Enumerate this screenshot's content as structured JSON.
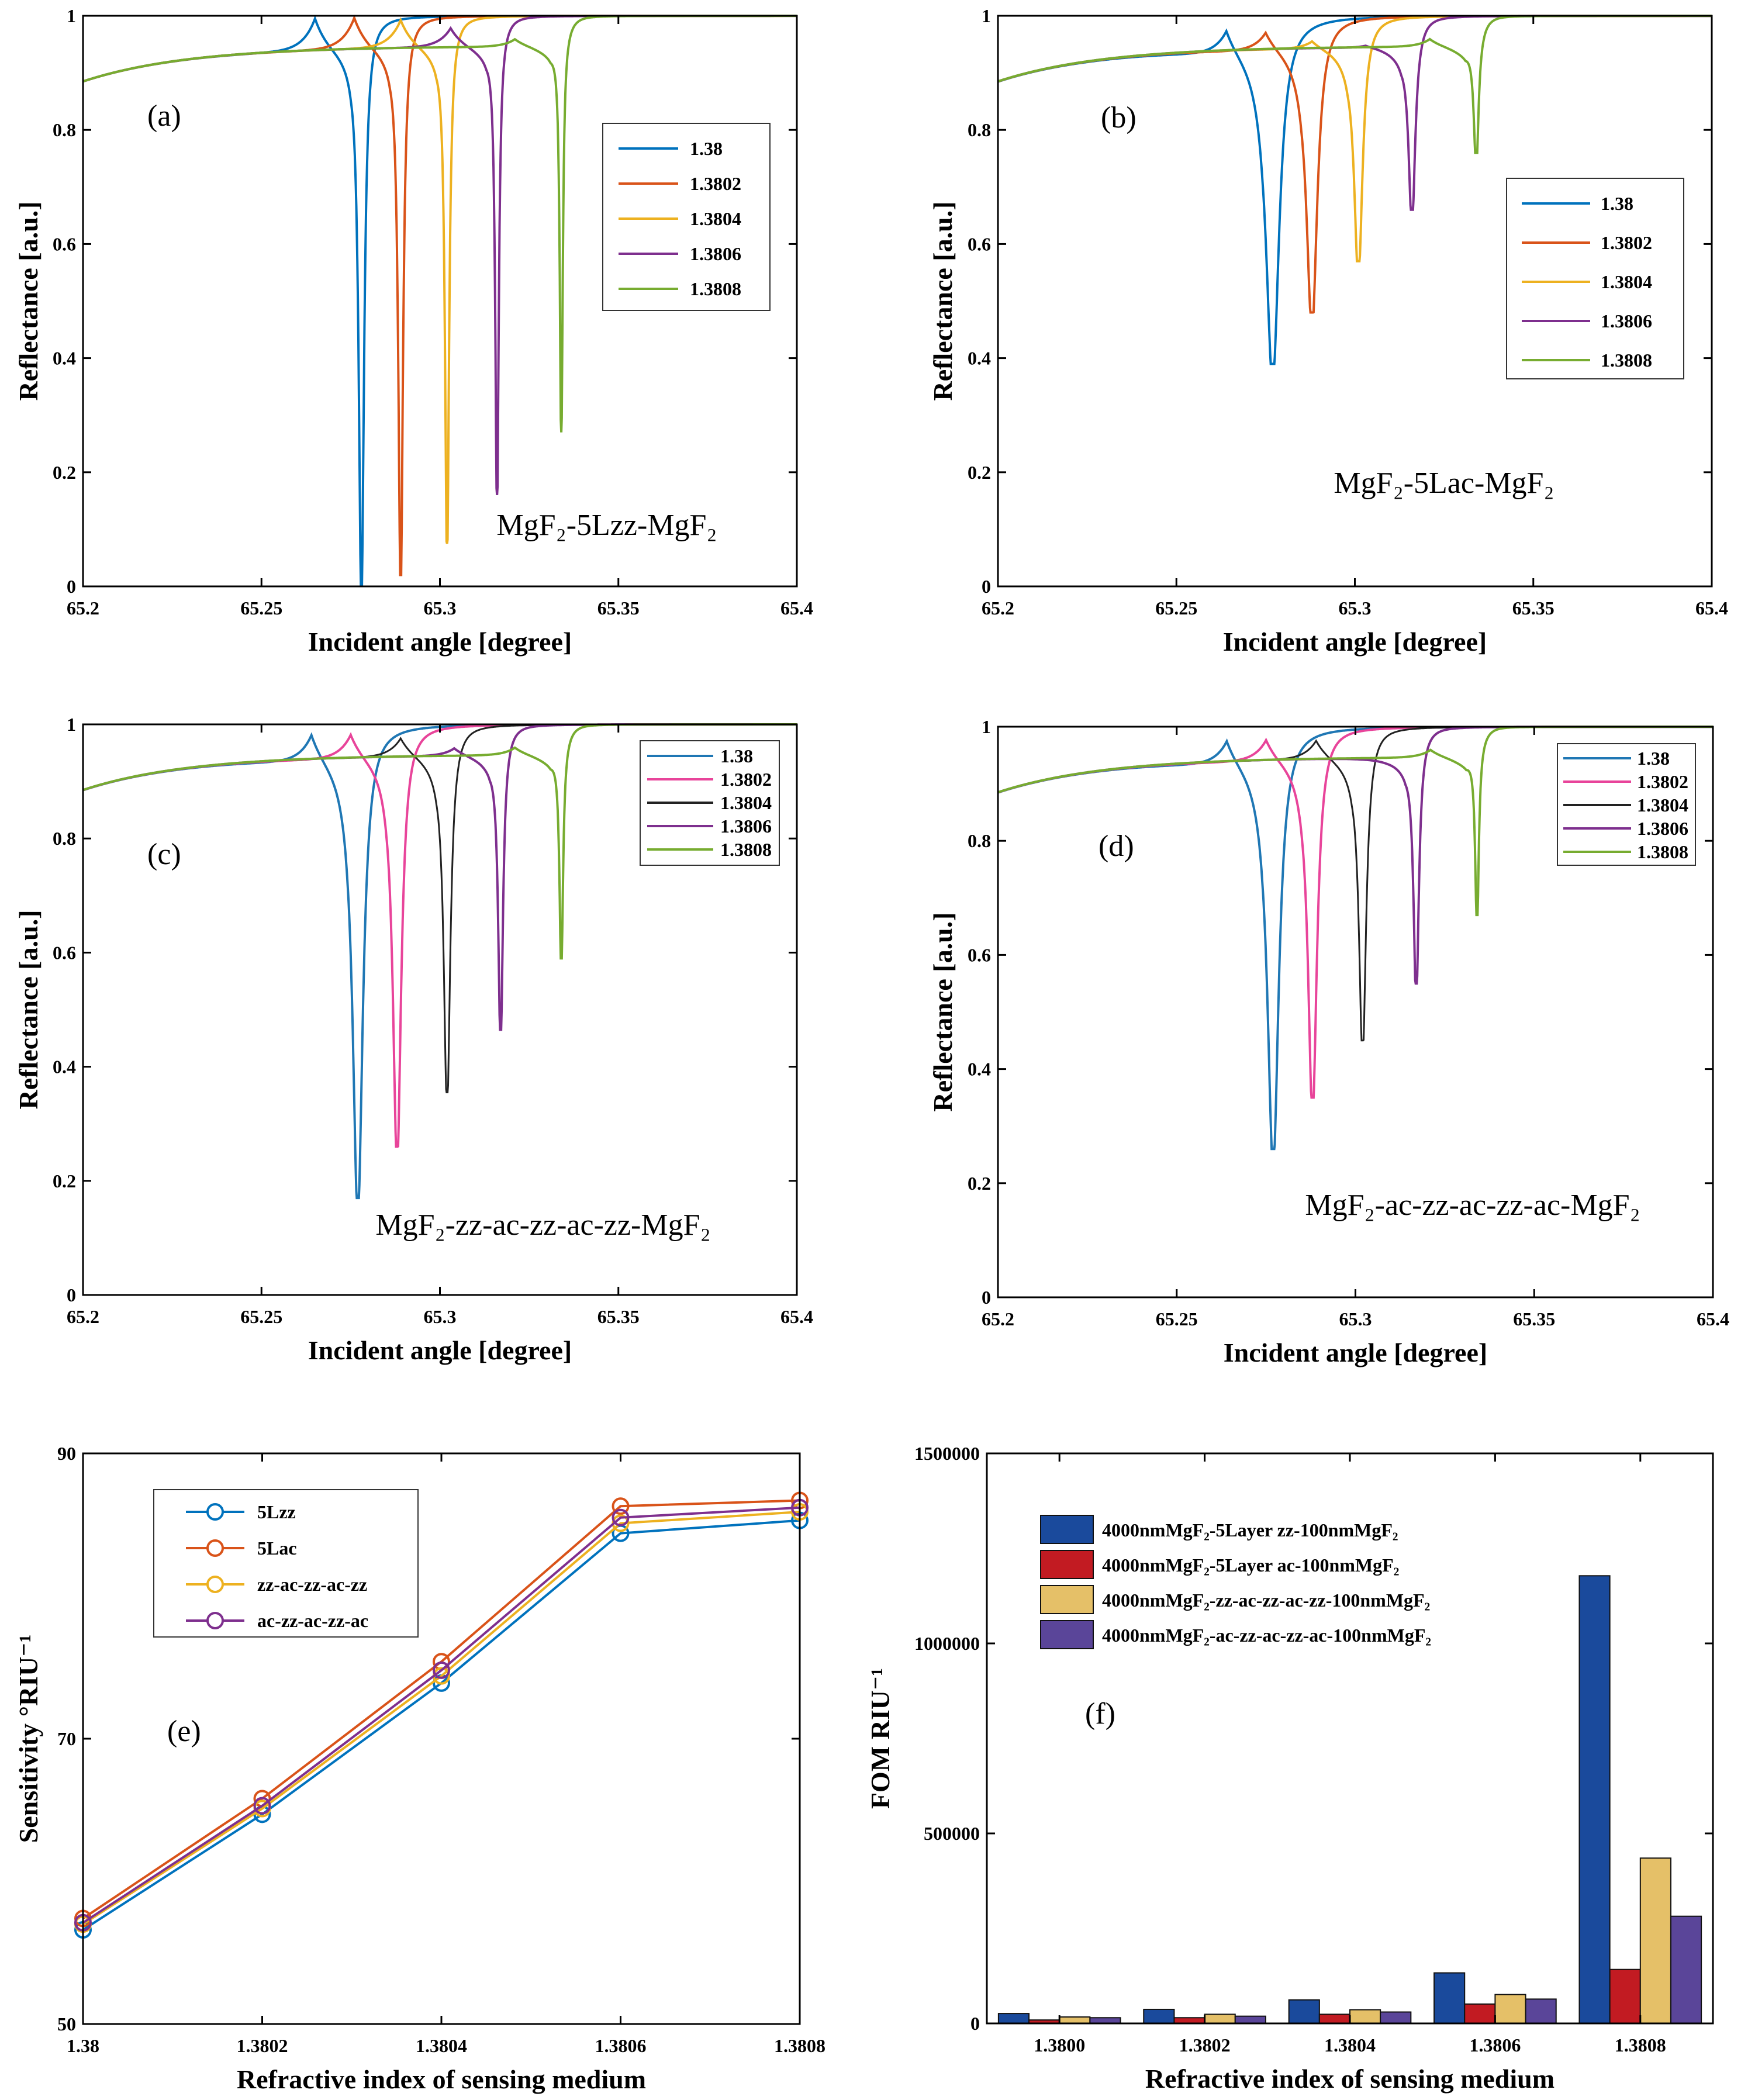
{
  "chart_data": [
    {
      "panel": "a",
      "type": "line",
      "label": "(a)",
      "annotation": "MgF₂-5Lzz-MgF₂",
      "xlabel": "Incident angle [degree]",
      "ylabel": "Reflectance [a.u.]",
      "xlim": [
        65.2,
        65.4
      ],
      "ylim": [
        0,
        1
      ],
      "xticks": [
        "65.2",
        "65.25",
        "65.3",
        "65.35",
        "65.4"
      ],
      "yticks": [
        "0",
        "0.2",
        "0.4",
        "0.6",
        "0.8",
        "1"
      ],
      "legend_position": "right",
      "grid": false,
      "series": [
        {
          "name": "1.38",
          "color": "#0072BD",
          "dip_angle": 65.278,
          "min_reflectance": 0.0,
          "dip_width": 0.0009,
          "peak_reflectance": 1.0
        },
        {
          "name": "1.3802",
          "color": "#D95319",
          "dip_angle": 65.289,
          "min_reflectance": 0.02,
          "dip_width": 0.0008,
          "peak_reflectance": 1.0
        },
        {
          "name": "1.3804",
          "color": "#EDB120",
          "dip_angle": 65.302,
          "min_reflectance": 0.075,
          "dip_width": 0.0007,
          "peak_reflectance": 0.995
        },
        {
          "name": "1.3806",
          "color": "#7E2F8E",
          "dip_angle": 65.316,
          "min_reflectance": 0.16,
          "dip_width": 0.0006,
          "peak_reflectance": 0.98
        },
        {
          "name": "1.3808",
          "color": "#77AC30",
          "dip_angle": 65.334,
          "min_reflectance": 0.27,
          "dip_width": 0.0005,
          "peak_reflectance": 0.96
        }
      ]
    },
    {
      "panel": "b",
      "type": "line",
      "label": "(b)",
      "annotation": "MgF₂-5Lac-MgF₂",
      "xlabel": "Incident angle [degree]",
      "ylabel": "Reflectance [a.u.]",
      "xlim": [
        65.2,
        65.4
      ],
      "ylim": [
        0,
        1
      ],
      "xticks": [
        "65.2",
        "65.25",
        "65.3",
        "65.35",
        "65.4"
      ],
      "yticks": [
        "0",
        "0.2",
        "0.4",
        "0.6",
        "0.8",
        "1"
      ],
      "legend_position": "right",
      "grid": false,
      "series": [
        {
          "name": "1.38",
          "color": "#0072BD",
          "dip_angle": 65.277,
          "min_reflectance": 0.39,
          "dip_width": 0.0022,
          "peak_reflectance": 0.99
        },
        {
          "name": "1.3802",
          "color": "#D95319",
          "dip_angle": 65.288,
          "min_reflectance": 0.48,
          "dip_width": 0.0018,
          "peak_reflectance": 0.98
        },
        {
          "name": "1.3804",
          "color": "#EDB120",
          "dip_angle": 65.301,
          "min_reflectance": 0.57,
          "dip_width": 0.0014,
          "peak_reflectance": 0.96
        },
        {
          "name": "1.3806",
          "color": "#7E2F8E",
          "dip_angle": 65.316,
          "min_reflectance": 0.66,
          "dip_width": 0.0011,
          "peak_reflectance": 0.95
        },
        {
          "name": "1.3808",
          "color": "#77AC30",
          "dip_angle": 65.334,
          "min_reflectance": 0.76,
          "dip_width": 0.0008,
          "peak_reflectance": 0.96
        }
      ]
    },
    {
      "panel": "c",
      "type": "line",
      "label": "(c)",
      "annotation": "MgF₂-zz-ac-zz-ac-zz-MgF₂",
      "xlabel": "Incident angle [degree]",
      "ylabel": "Reflectance [a.u.]",
      "xlim": [
        65.2,
        65.4
      ],
      "ylim": [
        0,
        1
      ],
      "xticks": [
        "65.2",
        "65.25",
        "65.3",
        "65.35",
        "65.4"
      ],
      "yticks": [
        "0",
        "0.2",
        "0.4",
        "0.6",
        "0.8",
        "1"
      ],
      "legend_position": "top-right",
      "grid": false,
      "series": [
        {
          "name": "1.38",
          "color": "#1F77B4",
          "dip_angle": 65.277,
          "min_reflectance": 0.17,
          "dip_width": 0.0017,
          "peak_reflectance": 0.995
        },
        {
          "name": "1.3802",
          "color": "#E8449A",
          "dip_angle": 65.288,
          "min_reflectance": 0.26,
          "dip_width": 0.0014,
          "peak_reflectance": 0.99
        },
        {
          "name": "1.3804",
          "color": "#222222",
          "dip_angle": 65.302,
          "min_reflectance": 0.355,
          "dip_width": 0.0011,
          "peak_reflectance": 0.98
        },
        {
          "name": "1.3806",
          "color": "#7E2F8E",
          "dip_angle": 65.317,
          "min_reflectance": 0.465,
          "dip_width": 0.0008,
          "peak_reflectance": 0.96
        },
        {
          "name": "1.3808",
          "color": "#77AC30",
          "dip_angle": 65.334,
          "min_reflectance": 0.59,
          "dip_width": 0.0006,
          "peak_reflectance": 0.96
        }
      ]
    },
    {
      "panel": "d",
      "type": "line",
      "label": "(d)",
      "annotation": "MgF₂-ac-zz-ac-zz-ac-MgF₂",
      "xlabel": "Incident angle [degree]",
      "ylabel": "Reflectance [a.u.]",
      "xlim": [
        65.2,
        65.4
      ],
      "ylim": [
        0,
        1
      ],
      "xticks": [
        "65.2",
        "65.25",
        "65.3",
        "65.35",
        "65.4"
      ],
      "yticks": [
        "0",
        "0.2",
        "0.4",
        "0.6",
        "0.8",
        "1"
      ],
      "legend_position": "top-right",
      "grid": false,
      "series": [
        {
          "name": "1.38",
          "color": "#1F77B4",
          "dip_angle": 65.277,
          "min_reflectance": 0.26,
          "dip_width": 0.0019,
          "peak_reflectance": 0.99
        },
        {
          "name": "1.3802",
          "color": "#E8449A",
          "dip_angle": 65.288,
          "min_reflectance": 0.35,
          "dip_width": 0.0015,
          "peak_reflectance": 0.985
        },
        {
          "name": "1.3804",
          "color": "#222222",
          "dip_angle": 65.302,
          "min_reflectance": 0.45,
          "dip_width": 0.0012,
          "peak_reflectance": 0.98
        },
        {
          "name": "1.3806",
          "color": "#7E2F8E",
          "dip_angle": 65.317,
          "min_reflectance": 0.55,
          "dip_width": 0.0009,
          "peak_reflectance": 0.94
        },
        {
          "name": "1.3808",
          "color": "#77AC30",
          "dip_angle": 65.334,
          "min_reflectance": 0.67,
          "dip_width": 0.0006,
          "peak_reflectance": 0.96
        }
      ]
    },
    {
      "panel": "e",
      "type": "line",
      "label": "(e)",
      "xlabel": "Refractive index of sensing medium",
      "ylabel": "Sensitivity °RIU⁻¹",
      "x": [
        1.38,
        1.3802,
        1.3804,
        1.3806,
        1.3808
      ],
      "xlim": [
        1.38,
        1.3808
      ],
      "ylim": [
        50,
        90
      ],
      "xticks": [
        "1.38",
        "1.3802",
        "1.3804",
        "1.3806",
        "1.3808"
      ],
      "yticks": [
        "50",
        "70",
        "90"
      ],
      "legend_position": "top-left",
      "grid": false,
      "marker": "circle",
      "series": [
        {
          "name": "5Lzz",
          "color": "#0072BD",
          "values": [
            56.6,
            64.7,
            73.9,
            84.4,
            85.3
          ]
        },
        {
          "name": "5Lac",
          "color": "#D95319",
          "values": [
            57.4,
            65.8,
            75.4,
            86.3,
            86.7
          ]
        },
        {
          "name": "zz-ac-zz-ac-zz",
          "color": "#EDB120",
          "values": [
            57.0,
            65.1,
            74.4,
            85.1,
            85.9
          ]
        },
        {
          "name": "ac-zz-ac-zz-ac",
          "color": "#7E2F8E",
          "values": [
            57.1,
            65.3,
            74.8,
            85.5,
            86.2
          ]
        }
      ]
    },
    {
      "panel": "f",
      "type": "bar",
      "label": "(f)",
      "xlabel": "Refractive index of sensing medium",
      "ylabel": "FOM RIU⁻¹",
      "categories": [
        "1.3800",
        "1.3802",
        "1.3804",
        "1.3806",
        "1.3808"
      ],
      "ylim": [
        0,
        1500000
      ],
      "yticks": [
        "0",
        "500000",
        "1000000",
        "1500000"
      ],
      "legend_position": "top-left",
      "grid": false,
      "series": [
        {
          "name": "4000nmMgF₂-5Layer zz-100nmMgF₂",
          "color": "#1A4A9C",
          "values": [
            26000,
            37000,
            62000,
            133000,
            1178000
          ]
        },
        {
          "name": "4000nmMgF₂-5Layer ac-100nmMgF₂",
          "color": "#C21B22",
          "values": [
            9000,
            15000,
            24000,
            51000,
            142000
          ]
        },
        {
          "name": "4000nmMgF₂-zz-ac-zz-ac-zz-100nmMgF₂",
          "color": "#E5C068",
          "values": [
            17000,
            24000,
            36000,
            76000,
            435000
          ]
        },
        {
          "name": "4000nmMgF₂-ac-zz-ac-zz-ac-100nmMgF₂",
          "color": "#5A4599",
          "values": [
            15000,
            19000,
            30000,
            64000,
            282000
          ]
        }
      ]
    }
  ]
}
